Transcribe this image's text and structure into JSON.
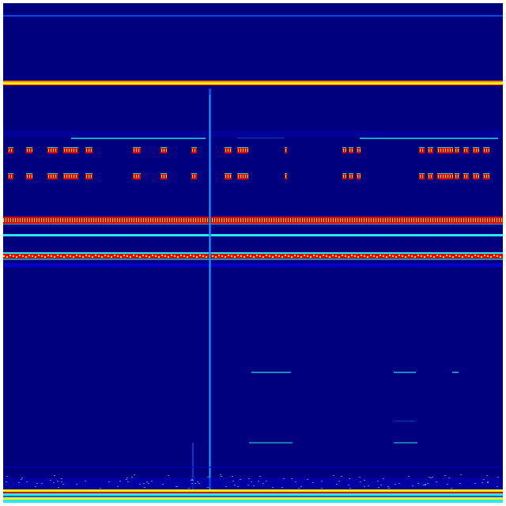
{
  "colors": {
    "background": "#00007f",
    "low": "#0000c8",
    "mid": "#0060ff",
    "cyan": "#28e8f0",
    "yellow": "#f8f000",
    "orange": "#ff8000",
    "red": "#e00000",
    "frame": "#ffffff"
  }
}
